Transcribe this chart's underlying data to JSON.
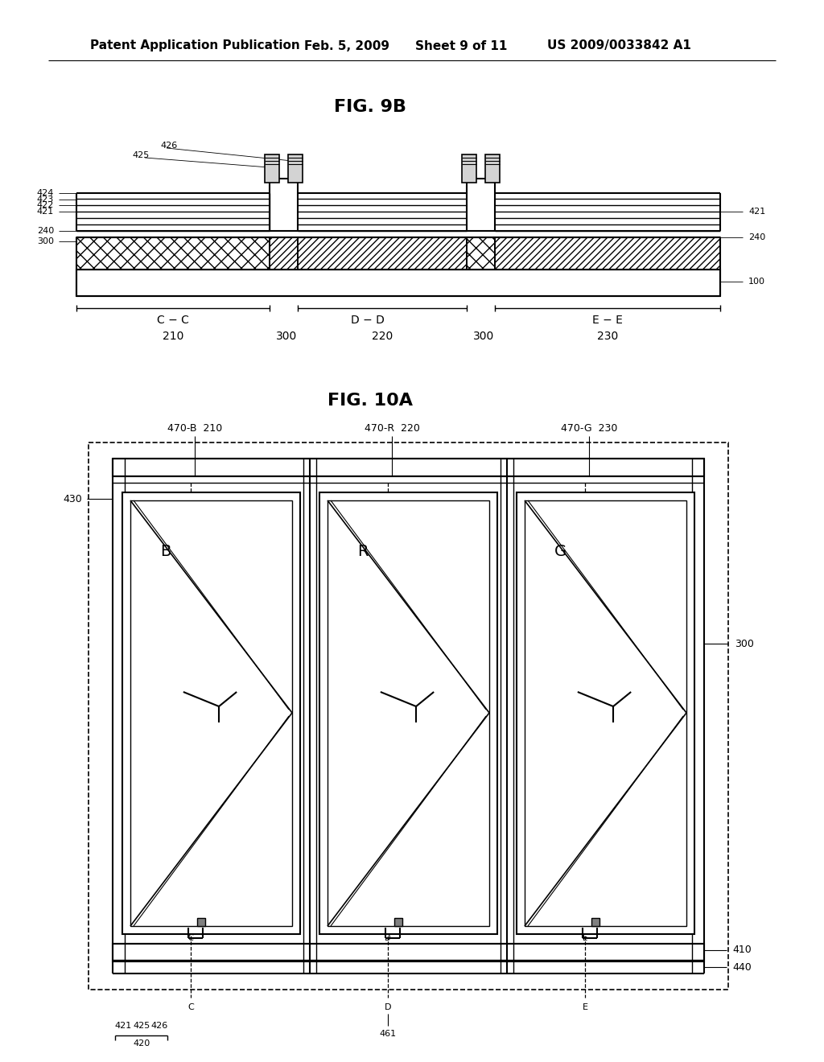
{
  "bg_color": "#ffffff",
  "header_text": "Patent Application Publication",
  "header_date": "Feb. 5, 2009",
  "header_sheet": "Sheet 9 of 11",
  "header_patent": "US 2009/0033842 A1",
  "fig9b_title": "FIG. 9B",
  "fig10a_title": "FIG. 10A",
  "fig9b_labels_left": [
    "424",
    "423",
    "422",
    "421",
    "240",
    "300"
  ],
  "fig9b_labels_right": [
    "421",
    "240",
    "100"
  ],
  "fig9b_bot_labels": [
    "C − C",
    "D − D",
    "E − E"
  ],
  "fig9b_bot_nums": [
    "210",
    "300",
    "220",
    "300",
    "230"
  ],
  "fig10a_top_labels": [
    "470-B",
    "210",
    "470-R",
    "220",
    "470-G",
    "230"
  ],
  "fig10a_left_label": "430",
  "fig10a_right_label": "300",
  "fig10a_bot_labels": [
    "410",
    "440"
  ],
  "fig10a_pixel_labels": [
    "B",
    "R",
    "G"
  ],
  "fig10a_bot_nums": [
    "421",
    "425",
    "426",
    "420",
    "461"
  ]
}
